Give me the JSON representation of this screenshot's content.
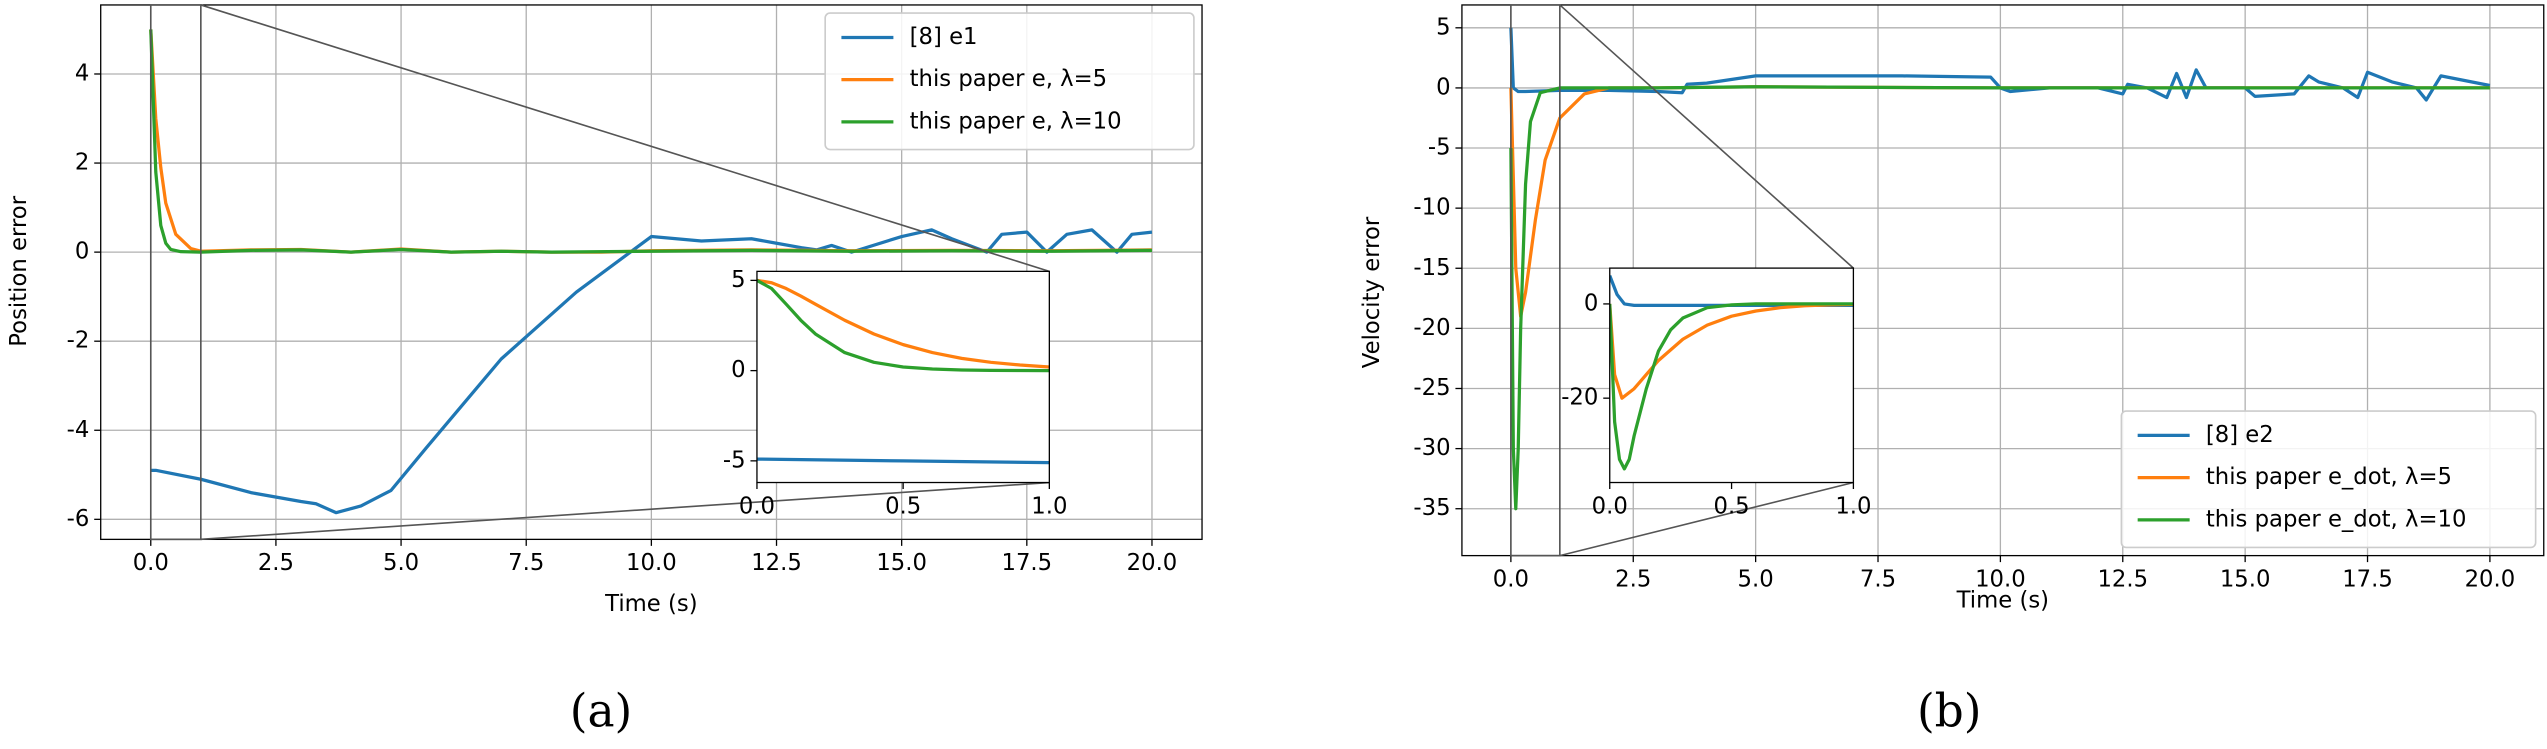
{
  "chart_data": [
    {
      "type": "line",
      "caption": "(a)",
      "x_label": "Time (s)",
      "y_label": "Position error",
      "grid": true,
      "legend": "upper right",
      "xlim": [
        -1,
        21
      ],
      "ylim": [
        -6.45,
        5.55
      ],
      "xticks": [
        {
          "value": 0,
          "label": "0.0"
        },
        {
          "value": 2.5,
          "label": "2.5"
        },
        {
          "value": 5,
          "label": "5.0"
        },
        {
          "value": 7.5,
          "label": "7.5"
        },
        {
          "value": 10,
          "label": "10.0"
        },
        {
          "value": 12.5,
          "label": "12.5"
        },
        {
          "value": 15,
          "label": "15.0"
        },
        {
          "value": 17.5,
          "label": "17.5"
        },
        {
          "value": 20,
          "label": "20.0"
        }
      ],
      "yticks": [
        -6,
        -4,
        -2,
        0,
        2,
        4
      ],
      "series": [
        {
          "name": "[8] e1",
          "color": "#1f77b4",
          "x": [
            0,
            0.1,
            1,
            2,
            3,
            3.3,
            3.7,
            4.2,
            4.8,
            5.5,
            7,
            8.5,
            10,
            10.5,
            11,
            12,
            12.5,
            13,
            13.3,
            13.6,
            14,
            15,
            15.6,
            16,
            16.7,
            17,
            17.5,
            17.9,
            18.3,
            18.8,
            19.3,
            19.6,
            20
          ],
          "values": [
            -4.9,
            -4.9,
            -5.1,
            -5.4,
            -5.6,
            -5.65,
            -5.85,
            -5.7,
            -5.35,
            -4.4,
            -2.4,
            -0.9,
            0.35,
            0.3,
            0.25,
            0.3,
            0.2,
            0.1,
            0.05,
            0.15,
            0.0,
            0.35,
            0.5,
            0.3,
            0.0,
            0.4,
            0.45,
            0.0,
            0.4,
            0.5,
            0.0,
            0.4,
            0.45
          ]
        },
        {
          "name": "this paper e, λ=5",
          "color": "#ff7f0e",
          "x": [
            0,
            0.1,
            0.2,
            0.3,
            0.5,
            0.8,
            1,
            2,
            3,
            4,
            5,
            6,
            7,
            8,
            9,
            10,
            12,
            14,
            16,
            18,
            20
          ],
          "values": [
            5,
            3,
            1.9,
            1.1,
            0.4,
            0.08,
            0.02,
            0.05,
            0.06,
            0,
            0.07,
            0,
            0.02,
            0,
            0,
            0.03,
            0.05,
            0.03,
            0.04,
            0.03,
            0.05
          ]
        },
        {
          "name": "this paper e, λ=10",
          "color": "#2ca02c",
          "x": [
            0,
            0.1,
            0.2,
            0.3,
            0.4,
            0.6,
            1,
            2,
            3,
            4,
            5,
            6,
            7,
            8,
            10,
            12,
            14,
            16,
            18,
            20
          ],
          "values": [
            5,
            1.8,
            0.6,
            0.2,
            0.06,
            0.01,
            0,
            0.04,
            0.05,
            0,
            0.06,
            0,
            0.02,
            0,
            0.02,
            0.04,
            0.02,
            0.03,
            0.02,
            0.04
          ]
        }
      ],
      "inset": {
        "grid": false,
        "xlim": [
          0,
          1
        ],
        "ylim": [
          -6.2,
          5.5
        ],
        "xticks": [
          {
            "value": 0,
            "label": "0.0"
          },
          {
            "value": 0.5,
            "label": "0.5"
          },
          {
            "value": 1,
            "label": "1.0"
          }
        ],
        "yticks": [
          -5,
          0,
          5
        ],
        "series": [
          {
            "color": "#1f77b4",
            "x": [
              0,
              0.5,
              1
            ],
            "values": [
              -4.9,
              -5.0,
              -5.1
            ]
          },
          {
            "color": "#ff7f0e",
            "x": [
              0,
              0.05,
              0.1,
              0.15,
              0.2,
              0.3,
              0.4,
              0.5,
              0.6,
              0.7,
              0.8,
              0.9,
              1
            ],
            "values": [
              5,
              4.87,
              4.55,
              4.13,
              3.68,
              2.79,
              2.03,
              1.44,
              1.0,
              0.68,
              0.46,
              0.31,
              0.2
            ]
          },
          {
            "color": "#2ca02c",
            "x": [
              0,
              0.05,
              0.1,
              0.15,
              0.2,
              0.3,
              0.4,
              0.5,
              0.6,
              0.7,
              0.8,
              0.9,
              1
            ],
            "values": [
              5,
              4.55,
              3.68,
              2.79,
              2.03,
              1.0,
              0.46,
              0.2,
              0.087,
              0.036,
              0.015,
              0.006,
              0.002
            ]
          }
        ]
      }
    },
    {
      "type": "line",
      "caption": "(b)",
      "x_label": "Time (s)",
      "y_label": "Velocity error",
      "grid": true,
      "legend": "lower right",
      "xlim": [
        -1,
        21.1
      ],
      "ylim": [
        -38.9,
        6.9
      ],
      "xticks": [
        {
          "value": 0,
          "label": "0.0"
        },
        {
          "value": 2.5,
          "label": "2.5"
        },
        {
          "value": 5,
          "label": "5.0"
        },
        {
          "value": 7.5,
          "label": "7.5"
        },
        {
          "value": 10,
          "label": "10.0"
        },
        {
          "value": 12.5,
          "label": "12.5"
        },
        {
          "value": 15,
          "label": "15.0"
        },
        {
          "value": 17.5,
          "label": "17.5"
        },
        {
          "value": 20,
          "label": "20.0"
        }
      ],
      "yticks": [
        -35,
        -30,
        -25,
        -20,
        -15,
        -10,
        -5,
        0,
        5
      ],
      "series": [
        {
          "name": "[8] e2",
          "color": "#1f77b4",
          "x": [
            0,
            0.05,
            0.15,
            0.3,
            1,
            2,
            3,
            3.5,
            3.6,
            4,
            5,
            6,
            8,
            9.8,
            10,
            10.2,
            11,
            12,
            12.5,
            12.6,
            13,
            13.4,
            13.6,
            13.8,
            14,
            14.2,
            15,
            15.2,
            16,
            16.3,
            16.5,
            17,
            17.3,
            17.5,
            18,
            18.5,
            18.7,
            19,
            20
          ],
          "values": [
            5,
            0,
            -0.3,
            -0.3,
            -0.2,
            -0.2,
            -0.3,
            -0.4,
            0.3,
            0.4,
            1.0,
            1.0,
            1.0,
            0.9,
            0,
            -0.3,
            0,
            0,
            -0.5,
            0.3,
            0,
            -0.8,
            1.2,
            -0.8,
            1.5,
            0,
            0,
            -0.7,
            -0.5,
            1,
            0.5,
            0,
            -0.8,
            1.3,
            0.5,
            0,
            -1.0,
            1.0,
            0.2
          ]
        },
        {
          "name": "this paper e_dot, λ=5",
          "color": "#ff7f0e",
          "x": [
            0,
            0.1,
            0.2,
            0.3,
            0.5,
            0.7,
            1,
            1.5,
            2,
            3,
            5,
            10,
            15,
            20
          ],
          "values": [
            0,
            -15,
            -19,
            -17,
            -11,
            -6,
            -2.5,
            -0.5,
            0,
            0,
            0.1,
            0,
            0,
            0
          ]
        },
        {
          "name": "this paper e_dot, λ=10",
          "color": "#2ca02c",
          "x": [
            0,
            0.05,
            0.1,
            0.15,
            0.2,
            0.3,
            0.4,
            0.6,
            1,
            2,
            3,
            5,
            10,
            15,
            20
          ],
          "values": [
            -5,
            -30,
            -35,
            -30,
            -20,
            -8,
            -2.8,
            -0.4,
            0,
            0,
            0,
            0.1,
            0,
            0,
            0
          ]
        }
      ],
      "inset": {
        "grid": false,
        "xlim": [
          0,
          1
        ],
        "ylim": [
          -37.9,
          7.6
        ],
        "xticks": [
          {
            "value": 0,
            "label": "0.0"
          },
          {
            "value": 0.5,
            "label": "0.5"
          },
          {
            "value": 1,
            "label": "1.0"
          }
        ],
        "yticks": [
          -20,
          0
        ],
        "series": [
          {
            "color": "#1f77b4",
            "x": [
              0,
              0.03,
              0.06,
              0.1,
              0.2,
              0.5,
              1
            ],
            "values": [
              6,
              2,
              0,
              -0.3,
              -0.3,
              -0.3,
              -0.3
            ]
          },
          {
            "color": "#ff7f0e",
            "x": [
              0,
              0.02,
              0.05,
              0.1,
              0.15,
              0.2,
              0.3,
              0.4,
              0.5,
              0.6,
              0.7,
              0.8,
              0.9,
              1
            ],
            "values": [
              0,
              -15,
              -20,
              -18,
              -15,
              -12,
              -7.5,
              -4.5,
              -2.6,
              -1.5,
              -0.8,
              -0.4,
              -0.2,
              -0.1
            ]
          },
          {
            "color": "#2ca02c",
            "x": [
              0,
              0.02,
              0.04,
              0.06,
              0.08,
              0.1,
              0.15,
              0.2,
              0.25,
              0.3,
              0.4,
              0.5,
              0.6,
              0.8,
              1
            ],
            "values": [
              0,
              -25,
              -33,
              -35,
              -33,
              -28,
              -18,
              -10,
              -5.5,
              -3,
              -0.8,
              -0.2,
              0,
              0,
              0
            ]
          }
        ]
      }
    }
  ]
}
